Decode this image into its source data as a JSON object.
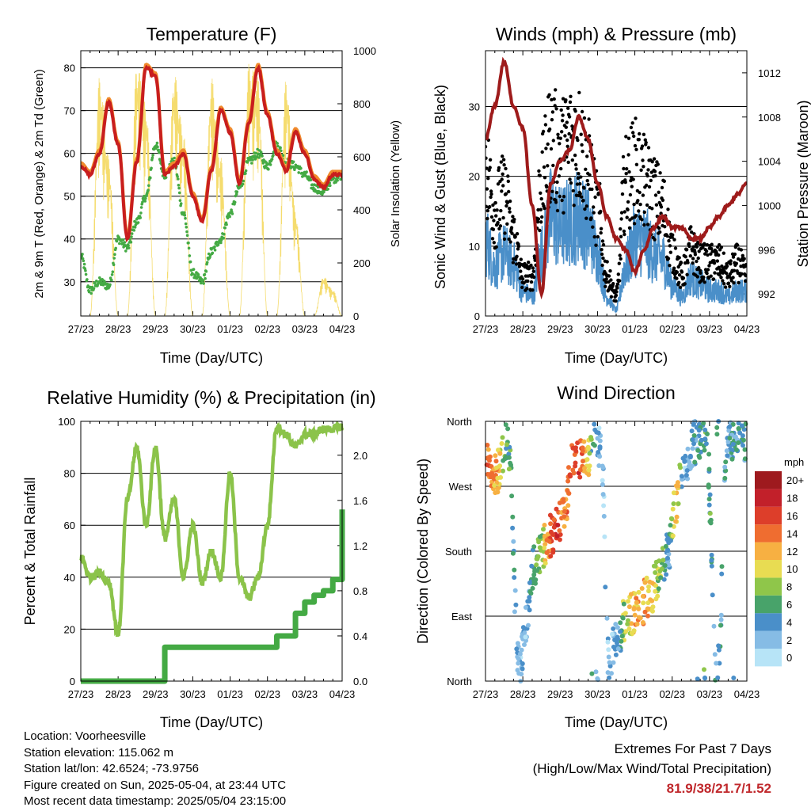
{
  "panels": {
    "temperature": {
      "title": "Temperature (F)",
      "ylabel_left": "2m & 9m T (Red, Orange) & 2m Td (Green)",
      "ylabel_right": "Solar Insolation (Yellow)",
      "xlabel": "Time (Day/UTC)",
      "yticks_left": [
        "30",
        "40",
        "50",
        "60",
        "70",
        "80"
      ],
      "yticks_right": [
        "0",
        "200",
        "400",
        "600",
        "800",
        "1000"
      ]
    },
    "winds": {
      "title": "Winds (mph) & Pressure (mb)",
      "ylabel_left": "Sonic Wind & Gust (Blue, Black)",
      "ylabel_right": "Station Pressure (Maroon)",
      "xlabel": "Time (Day/UTC)",
      "yticks_left": [
        "0",
        "10",
        "20",
        "30"
      ],
      "yticks_right": [
        "992",
        "996",
        "1000",
        "1004",
        "1008",
        "1012"
      ]
    },
    "humidity": {
      "title": "Relative Humidity (%) & Precipitation (in)",
      "ylabel_left": "Percent & Total Rainfall",
      "xlabel": "Time (Day/UTC)",
      "yticks_left": [
        "0",
        "20",
        "40",
        "60",
        "80",
        "100"
      ],
      "yticks_right": [
        "0.0",
        "0.4",
        "0.8",
        "1.2",
        "1.6",
        "2.0"
      ]
    },
    "direction": {
      "title": "Wind Direction",
      "ylabel_left": "Direction (Colored By Speed)",
      "xlabel": "Time (Day/UTC)",
      "yticks_left": [
        "North",
        "East",
        "South",
        "West",
        "North"
      ],
      "legend_title": "mph",
      "legend_labels": [
        "0",
        "2",
        "4",
        "6",
        "8",
        "10",
        "12",
        "14",
        "16",
        "18",
        "20+"
      ],
      "legend_colors": [
        "#b7e4f7",
        "#86bce5",
        "#4a8fc9",
        "#48a36a",
        "#8fc64a",
        "#e8dc52",
        "#f7b042",
        "#ef6d30",
        "#dd3e2a",
        "#c2202a",
        "#9e1a1e"
      ]
    }
  },
  "xticks": [
    "27/23",
    "28/23",
    "29/23",
    "30/23",
    "01/23",
    "02/23",
    "03/23",
    "04/23"
  ],
  "info": {
    "location": "Location: Voorheesville",
    "elevation": "Station elevation: 115.062 m",
    "latlon": "Station lat/lon: 42.6524; -73.9756",
    "created": "Figure created on Sun, 2025-05-04, at 23:44 UTC",
    "recent": "Most recent data timestamp: 2025/05/04 23:15:00"
  },
  "extremes": {
    "title": "Extremes For Past 7 Days",
    "subtitle": "(High/Low/Max Wind/Total Precipitation)",
    "values": "81.9/38/21.7/1.52"
  },
  "chart_data": [
    {
      "type": "line",
      "x_days": [
        0,
        0.25,
        0.5,
        0.75,
        1,
        1.25,
        1.5,
        1.75,
        2,
        2.25,
        2.5,
        2.75,
        3,
        3.25,
        3.5,
        3.75,
        4,
        4.25,
        4.5,
        4.75,
        5,
        5.25,
        5.5,
        5.75,
        6,
        6.25,
        6.5,
        6.75,
        7
      ],
      "series": [
        {
          "name": "2m T",
          "color": "#c81e1e",
          "values": [
            57,
            55,
            60,
            72,
            62,
            40,
            58,
            80,
            78,
            55,
            57,
            60,
            50,
            44,
            56,
            70,
            65,
            53,
            67,
            80,
            69,
            60,
            56,
            65,
            60,
            54,
            52,
            55,
            55
          ]
        },
        {
          "name": "2m Td",
          "color": "#44aa44",
          "values": [
            36,
            28,
            30,
            29,
            40,
            38,
            44,
            50,
            62,
            55,
            58,
            46,
            32,
            30,
            37,
            40,
            46,
            52,
            58,
            60,
            57,
            62,
            58,
            57,
            55,
            52,
            51,
            54,
            55
          ]
        },
        {
          "name": "Solar Insolation",
          "color": "#f5dc6e",
          "values": [
            0,
            0,
            900,
            600,
            0,
            0,
            950,
            800,
            0,
            0,
            920,
            700,
            0,
            0,
            900,
            600,
            0,
            0,
            950,
            900,
            0,
            0,
            900,
            400,
            0,
            0,
            150,
            100,
            0
          ]
        }
      ],
      "ylim": [
        22,
        84
      ],
      "ylim_right": [
        0,
        1000
      ]
    },
    {
      "type": "scatter",
      "x_days": [
        0,
        0.25,
        0.5,
        0.75,
        1,
        1.25,
        1.5,
        1.75,
        2,
        2.25,
        2.5,
        2.75,
        3,
        3.25,
        3.5,
        3.75,
        4,
        4.25,
        4.5,
        4.75,
        5,
        5.25,
        5.5,
        5.75,
        6,
        6.25,
        6.5,
        6.75,
        7
      ],
      "series": [
        {
          "name": "Sonic Wind",
          "color": "#4a8fc9",
          "values": [
            12,
            8,
            10,
            8,
            4,
            3,
            10,
            16,
            14,
            15,
            16,
            14,
            10,
            3,
            1,
            8,
            12,
            12,
            10,
            9,
            5,
            3,
            6,
            5,
            4,
            4,
            3,
            4,
            4
          ]
        },
        {
          "name": "Gust",
          "color": "#000000",
          "values": [
            22,
            16,
            18,
            12,
            6,
            6,
            20,
            26,
            24,
            26,
            26,
            22,
            16,
            6,
            3,
            20,
            22,
            20,
            18,
            16,
            10,
            6,
            10,
            8,
            8,
            8,
            6,
            8,
            6
          ]
        },
        {
          "name": "Station Pressure",
          "color": "#9e1b1b",
          "values": [
            1006,
            1009,
            1013,
            1009,
            1007,
            1000,
            992,
            1002,
            1004,
            1005,
            1008,
            1006,
            1002,
            999,
            997,
            996,
            994,
            996,
            998,
            999,
            998,
            998,
            997,
            997,
            998,
            999,
            1000,
            1001,
            1002
          ]
        }
      ],
      "ylim": [
        0,
        38
      ],
      "ylim_right": [
        990,
        1014
      ]
    },
    {
      "type": "line",
      "x_days": [
        0,
        0.25,
        0.5,
        0.75,
        1,
        1.25,
        1.5,
        1.75,
        2,
        2.25,
        2.5,
        2.75,
        3,
        3.25,
        3.5,
        3.75,
        4,
        4.25,
        4.5,
        4.75,
        5,
        5.25,
        5.5,
        5.75,
        6,
        6.25,
        6.5,
        6.75,
        7
      ],
      "series": [
        {
          "name": "Relative Humidity",
          "color": "#8bc34a",
          "values": [
            48,
            40,
            42,
            38,
            18,
            70,
            90,
            60,
            90,
            55,
            70,
            40,
            60,
            38,
            50,
            40,
            80,
            40,
            32,
            40,
            60,
            98,
            95,
            90,
            95,
            95,
            97,
            97,
            98
          ]
        },
        {
          "name": "Total Rainfall",
          "color": "#44aa44",
          "values": [
            0,
            0,
            0,
            0,
            0,
            0,
            0,
            0,
            0,
            0.3,
            0.3,
            0.3,
            0.3,
            0.3,
            0.3,
            0.3,
            0.3,
            0.3,
            0.3,
            0.3,
            0.3,
            0.4,
            0.4,
            0.6,
            0.7,
            0.76,
            0.8,
            0.9,
            1.52
          ]
        }
      ],
      "ylim": [
        0,
        100
      ],
      "ylim_right": [
        0,
        2.3
      ]
    },
    {
      "type": "scatter",
      "x_days": [
        0.1,
        0.3,
        0.6,
        0.9,
        1.1,
        1.3,
        1.5,
        1.7,
        1.9,
        2.1,
        2.3,
        2.5,
        2.7,
        2.9,
        3.1,
        3.3,
        3.5,
        3.8,
        4.1,
        4.4,
        4.6,
        4.9,
        5.1,
        5.3,
        5.6,
        5.9,
        6.2,
        6.5,
        6.8
      ],
      "series": [
        {
          "name": "Wind Direction (deg)",
          "values": [
            300,
            290,
            330,
            20,
            80,
            160,
            180,
            200,
            210,
            230,
            300,
            310,
            305,
            350,
            320,
            30,
            60,
            90,
            100,
            120,
            140,
            180,
            250,
            300,
            330,
            350,
            10,
            340,
            330
          ]
        },
        {
          "name": "Speed (mph)",
          "values": [
            14,
            12,
            6,
            3,
            2,
            6,
            8,
            14,
            16,
            13,
            14,
            16,
            12,
            4,
            2,
            2,
            3,
            10,
            12,
            12,
            8,
            4,
            12,
            2,
            4,
            6,
            4,
            4,
            4
          ]
        }
      ],
      "ylim": [
        0,
        360
      ]
    }
  ]
}
